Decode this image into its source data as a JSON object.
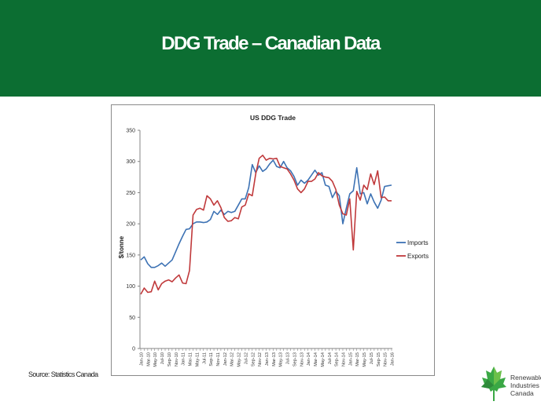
{
  "slide": {
    "title": "DDG Trade – Canadian Data",
    "source": "Source: Statistics Canada"
  },
  "logo": {
    "lines": [
      "Renewable",
      "Industries",
      "Canada"
    ],
    "icon": "maple-leaf-icon",
    "color": "#3aa845"
  },
  "colors": {
    "banner": "#0c6e32",
    "imports": "#3d72b4",
    "exports": "#c0393b"
  },
  "chart_data": {
    "type": "line",
    "title": "US DDG Trade",
    "xlabel": "",
    "ylabel": "$/tonne",
    "ylim": [
      0,
      350
    ],
    "yticks": [
      0,
      50,
      100,
      150,
      200,
      250,
      300,
      350
    ],
    "grid": false,
    "legend": "right",
    "x": [
      "Jan-10",
      "Feb-10",
      "Mar-10",
      "Apr-10",
      "May-10",
      "Jun-10",
      "Jul-10",
      "Aug-10",
      "Sep-10",
      "Oct-10",
      "Nov-10",
      "Dec-10",
      "Jan-11",
      "Feb-11",
      "Mar-11",
      "Apr-11",
      "May-11",
      "Jun-11",
      "Jul-11",
      "Aug-11",
      "Sep-11",
      "Oct-11",
      "Nov-11",
      "Dec-11",
      "Jan-12",
      "Feb-12",
      "Mar-12",
      "Apr-12",
      "May-12",
      "Jun-12",
      "Jul-12",
      "Aug-12",
      "Sep-12",
      "Oct-12",
      "Nov-12",
      "Dec-12",
      "Jan-13",
      "Feb-13",
      "Mar-13",
      "Apr-13",
      "May-13",
      "Jun-13",
      "Jul-13",
      "Aug-13",
      "Sep-13",
      "Oct-13",
      "Nov-13",
      "Dec-13",
      "Jan-14",
      "Feb-14",
      "Mar-14",
      "Apr-14",
      "May-14",
      "Jun-14",
      "Jul-14",
      "Aug-14",
      "Sep-14",
      "Oct-14",
      "Nov-14",
      "Dec-14",
      "Jan-15",
      "Feb-15",
      "Mar-15",
      "Apr-15",
      "May-15",
      "Jun-15",
      "Jul-15",
      "Aug-15",
      "Sep-15",
      "Oct-15",
      "Nov-15",
      "Dec-15",
      "Jan-16"
    ],
    "tick_labels": [
      "Jan-10",
      "Mar-10",
      "May-10",
      "Jul-10",
      "Sep-10",
      "Nov-10",
      "Jan-11",
      "Mar-11",
      "May-11",
      "Jul-11",
      "Sep-11",
      "Nov-11",
      "Jan-12",
      "Mar-12",
      "May-12",
      "Jul-12",
      "Sep-12",
      "Nov-12",
      "Jan-13",
      "Mar-13",
      "May-13",
      "Jul-13",
      "Sep-13",
      "Nov-13",
      "Jan-14",
      "Mar-14",
      "May-14",
      "Jul-14",
      "Sep-14",
      "Nov-14",
      "Jan-15",
      "Mar-15",
      "May-15",
      "Jul-15",
      "Sep-15",
      "Nov-15",
      "Jan-16"
    ],
    "series": [
      {
        "name": "Imports",
        "values": [
          142,
          147,
          136,
          130,
          130,
          133,
          137,
          132,
          137,
          142,
          155,
          168,
          180,
          191,
          192,
          200,
          203,
          203,
          202,
          203,
          207,
          220,
          215,
          222,
          215,
          220,
          218,
          220,
          230,
          240,
          240,
          258,
          295,
          282,
          293,
          284,
          288,
          296,
          302,
          292,
          290,
          300,
          290,
          285,
          276,
          262,
          270,
          265,
          270,
          278,
          286,
          278,
          282,
          262,
          260,
          242,
          252,
          245,
          200,
          225,
          248,
          253,
          290,
          248,
          250,
          232,
          248,
          235,
          225,
          238,
          260,
          261,
          262
        ]
      },
      {
        "name": "Exports",
        "values": [
          87,
          97,
          90,
          91,
          108,
          94,
          104,
          108,
          110,
          107,
          113,
          118,
          105,
          104,
          125,
          214,
          223,
          225,
          222,
          245,
          240,
          230,
          237,
          226,
          210,
          204,
          205,
          210,
          208,
          227,
          230,
          248,
          245,
          280,
          305,
          310,
          302,
          305,
          304,
          305,
          292,
          290,
          288,
          280,
          270,
          256,
          250,
          256,
          268,
          268,
          272,
          282,
          277,
          275,
          274,
          268,
          255,
          230,
          216,
          214,
          240,
          158,
          252,
          238,
          262,
          255,
          280,
          263,
          285,
          242,
          243,
          237,
          237
        ]
      }
    ]
  }
}
